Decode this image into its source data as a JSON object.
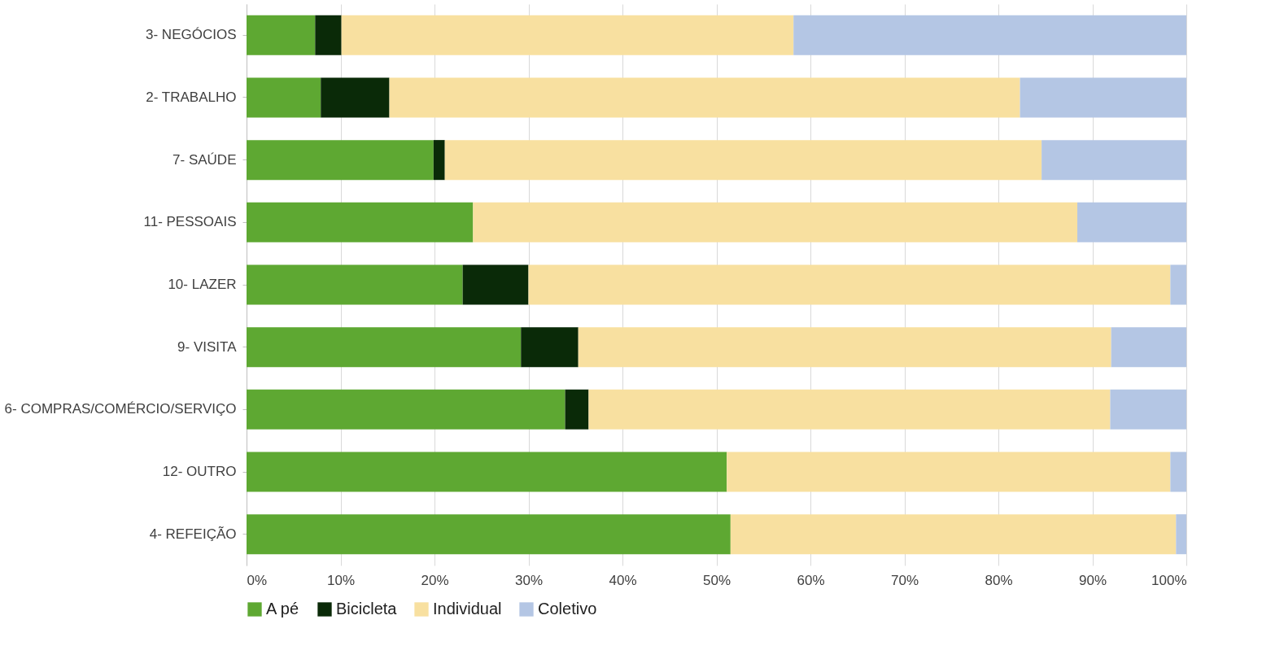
{
  "chart_data": {
    "type": "bar",
    "orientation": "horizontal",
    "stacked": true,
    "categories": [
      "3- NEGÓCIOS",
      "2- TRABALHO",
      "7- SAÚDE",
      "11- PESSOAIS",
      "10- LAZER",
      "9- VISITA",
      "6- COMPRAS/COMÉRCIO/SERVIÇO",
      "12- OUTRO",
      "4- REFEIÇÃO"
    ],
    "series": [
      {
        "name": "A pé",
        "color": "#5ea832",
        "values": [
          7.3,
          7.9,
          19.9,
          24.1,
          23.0,
          29.2,
          33.9,
          51.1,
          51.5
        ]
      },
      {
        "name": "Bicicleta",
        "color": "#0a2a08",
        "values": [
          2.8,
          7.3,
          1.2,
          0,
          7.0,
          6.1,
          2.5,
          0,
          0
        ]
      },
      {
        "name": "Individual",
        "color": "#f8e0a0",
        "values": [
          48.1,
          67.1,
          63.5,
          64.3,
          68.3,
          56.7,
          55.5,
          47.2,
          47.4
        ]
      },
      {
        "name": "Coletivo",
        "color": "#b4c6e4",
        "values": [
          41.8,
          17.7,
          15.4,
          11.6,
          1.7,
          8.0,
          8.1,
          1.7,
          1.1
        ]
      }
    ],
    "xlim": [
      0,
      100
    ],
    "xticks": [
      {
        "value": 0,
        "label": "0%"
      },
      {
        "value": 10,
        "label": "10%"
      },
      {
        "value": 20,
        "label": "20%"
      },
      {
        "value": 30,
        "label": "30%"
      },
      {
        "value": 40,
        "label": "40%"
      },
      {
        "value": 50,
        "label": "50%"
      },
      {
        "value": 60,
        "label": "60%"
      },
      {
        "value": 70,
        "label": "70%"
      },
      {
        "value": 80,
        "label": "80%"
      },
      {
        "value": 90,
        "label": "90%"
      },
      {
        "value": 100,
        "label": "100%"
      }
    ],
    "grid": "x",
    "legend": "bottom"
  }
}
